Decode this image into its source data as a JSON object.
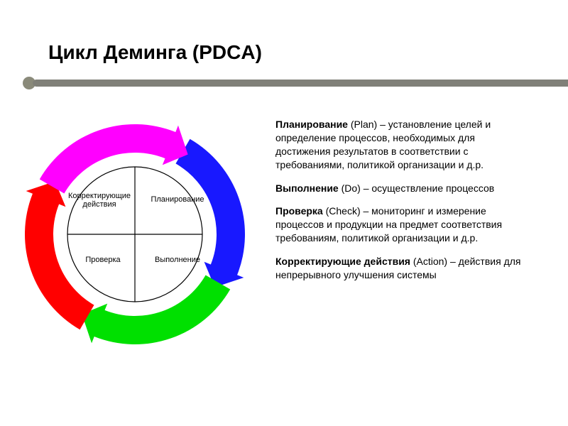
{
  "title": "Цикл Деминга (PDCA)",
  "accent": {
    "dot_color": "#8a8a7a",
    "line_color": "#808078"
  },
  "diagram": {
    "type": "cycle",
    "size": 340,
    "inner_circle": {
      "r": 95,
      "stroke": "#000000",
      "stroke_width": 1.2,
      "fill": "#ffffff"
    },
    "cross_stroke": "#000000",
    "arcs": [
      {
        "name": "plan",
        "color": "#1818ff",
        "start_deg": -60,
        "end_deg": 30
      },
      {
        "name": "do",
        "color": "#00e000",
        "start_deg": 30,
        "end_deg": 120
      },
      {
        "name": "check",
        "color": "#ff0000",
        "start_deg": 120,
        "end_deg": 210
      },
      {
        "name": "action",
        "color": "#ff00ff",
        "start_deg": 210,
        "end_deg": 300
      }
    ],
    "arc_outer_r": 155,
    "arc_inner_r": 115,
    "arrow_head_len": 28,
    "quadrant_labels": {
      "plan": "Планирование",
      "do": "Выполнение",
      "check": "Проверка",
      "action": "Корректирующие\nдействия"
    }
  },
  "descriptions": [
    {
      "bold": "Планирование",
      "paren": "(Plan)",
      "text": " – установление целей и определение процессов, необходимых для достижения результатов в соответствии с требованиями, политикой организации и д.р."
    },
    {
      "bold": "Выполнение",
      "paren": "(Do)",
      "text": " – осуществление процессов"
    },
    {
      "bold": "Проверка",
      "paren": "(Check)",
      "text": " – мониторинг и измерение процессов и продукции на предмет соответствия требованиям, политикой организации и д.р."
    },
    {
      "bold": "Корректирующие действия",
      "paren": "(Action)",
      "text": " – действия для непрерывного улучшения системы"
    }
  ]
}
